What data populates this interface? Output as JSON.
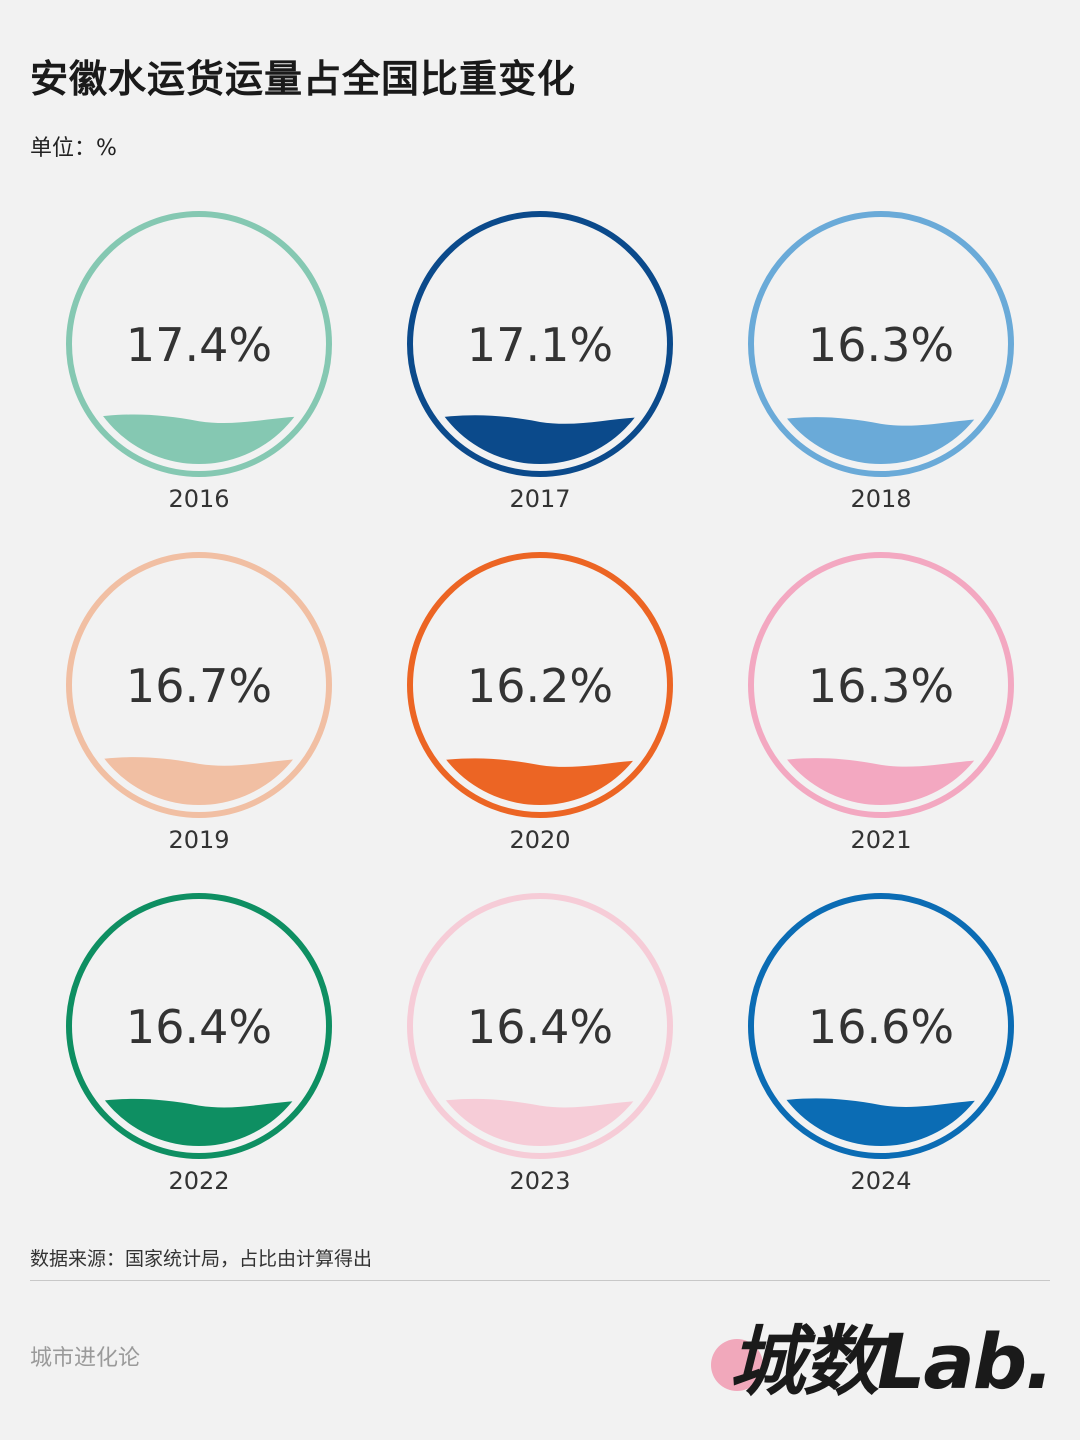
{
  "header": {
    "title": "安徽水运货运量占全国比重变化",
    "unit_label": "单位：",
    "unit_value": "%"
  },
  "chart_data": {
    "type": "liquid-fill",
    "title": "安徽水运货运量占全国比重变化",
    "unit": "%",
    "categories": [
      "2016",
      "2017",
      "2018",
      "2019",
      "2020",
      "2021",
      "2022",
      "2023",
      "2024"
    ],
    "values": [
      17.4,
      17.1,
      16.3,
      16.7,
      16.2,
      16.3,
      16.4,
      16.4,
      16.6
    ],
    "labels": [
      "17.4%",
      "17.1%",
      "16.3%",
      "16.7%",
      "16.2%",
      "16.3%",
      "16.4%",
      "16.4%",
      "16.6%"
    ],
    "ring_colors": [
      "#85c8b2",
      "#0b4a8b",
      "#6aaad8",
      "#f1bfa3",
      "#ec6524",
      "#f3a8c1",
      "#0e8f62",
      "#f6ccd7",
      "#0b6cb4"
    ],
    "fill_colors": [
      "#85c8b2",
      "#0b4a8b",
      "#6aaad8",
      "#f1bfa3",
      "#ec6524",
      "#f3a8c1",
      "#0e8f62",
      "#f6ccd7",
      "#0b6cb4"
    ]
  },
  "footer": {
    "source": "数据来源：国家统计局，占比由计算得出",
    "brand": "城市进化论",
    "logo": "城数Lab."
  }
}
